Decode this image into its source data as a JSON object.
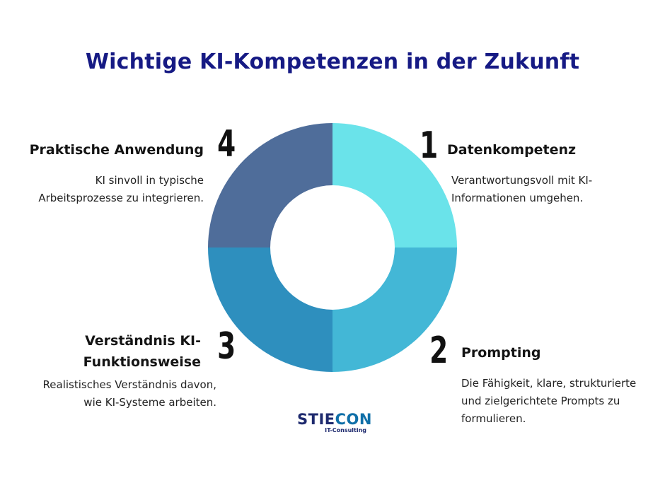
{
  "title": "Wichtige KI-Kompetenzen in der Zukunft",
  "sections": [
    {
      "number": "1",
      "title": "Datenkompetenz",
      "description_lines": [
        "Verantwortungsvoll mit KI-",
        "Informationen umgehen."
      ],
      "color": "#6ae3ea"
    },
    {
      "number": "2",
      "title": "Prompting",
      "description_lines": [
        "Die Fähigkeit, klare, strukturierte",
        "und zielgerichtete Prompts zu",
        "formulieren."
      ],
      "color": "#43b7d6"
    },
    {
      "number": "3",
      "title_lines": [
        "Verständnis KI-",
        "Funktionsweise"
      ],
      "description_lines": [
        "Realistisches Verständnis davon,",
        "wie KI-Systeme arbeiten."
      ],
      "color": "#2e8fbe"
    },
    {
      "number": "4",
      "title": "Praktische Anwendung",
      "description_lines": [
        "KI sinvoll in typische",
        "Arbeitsprozesse zu integrieren."
      ],
      "color": "#4f6d9a"
    }
  ],
  "logo": {
    "part1": "STIE",
    "part2": "CON",
    "subtitle": "IT-Consulting",
    "color1": "#1e2a6e",
    "color2": "#0f6fa8"
  }
}
